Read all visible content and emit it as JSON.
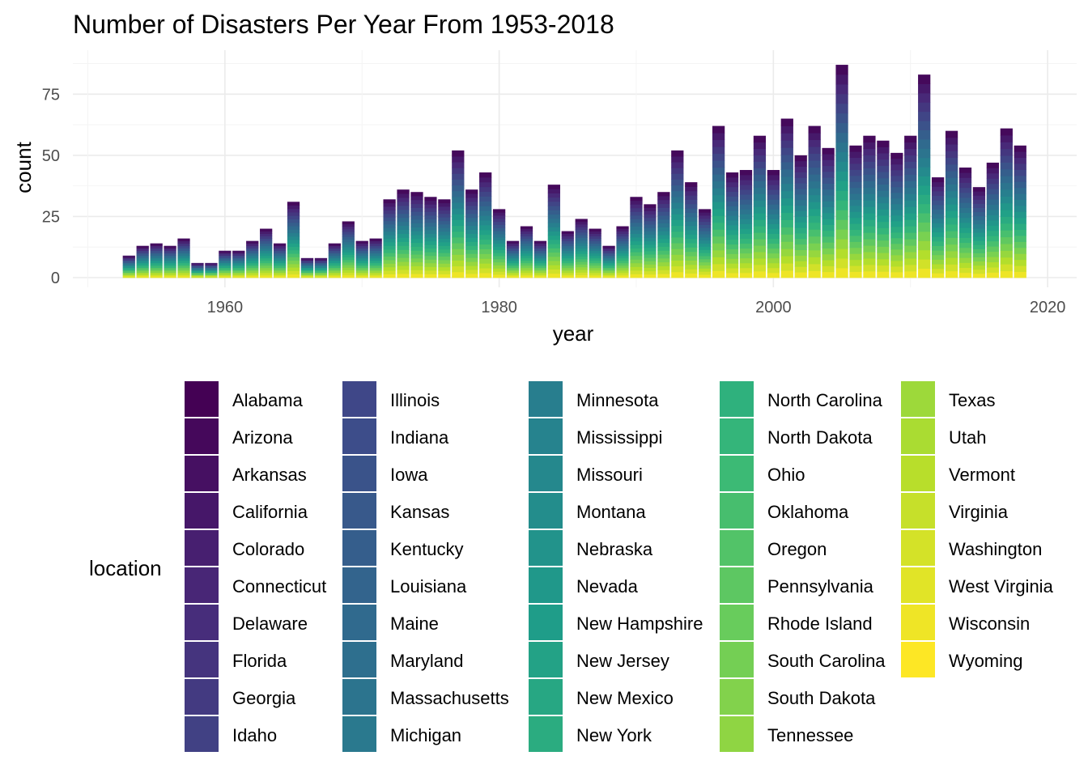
{
  "chart_data": {
    "type": "bar",
    "stacked": true,
    "title": "Number of Disasters Per Year From 1953-2018",
    "xlabel": "year",
    "ylabel": "count",
    "x": [
      1953,
      1954,
      1955,
      1956,
      1957,
      1958,
      1959,
      1960,
      1961,
      1962,
      1963,
      1964,
      1965,
      1966,
      1967,
      1968,
      1969,
      1970,
      1971,
      1972,
      1973,
      1974,
      1975,
      1976,
      1977,
      1978,
      1979,
      1980,
      1981,
      1982,
      1983,
      1984,
      1985,
      1986,
      1987,
      1988,
      1989,
      1990,
      1991,
      1992,
      1993,
      1994,
      1995,
      1996,
      1997,
      1998,
      1999,
      2000,
      2001,
      2002,
      2003,
      2004,
      2005,
      2006,
      2007,
      2008,
      2009,
      2010,
      2011,
      2012,
      2013,
      2014,
      2015,
      2016,
      2017,
      2018
    ],
    "totals": [
      9,
      13,
      14,
      13,
      16,
      6,
      6,
      11,
      11,
      15,
      20,
      14,
      31,
      8,
      8,
      14,
      23,
      15,
      16,
      32,
      36,
      35,
      33,
      32,
      52,
      36,
      43,
      28,
      15,
      21,
      15,
      38,
      19,
      24,
      20,
      13,
      21,
      33,
      30,
      35,
      52,
      39,
      28,
      62,
      43,
      44,
      58,
      44,
      65,
      50,
      62,
      53,
      87,
      54,
      58,
      56,
      51,
      58,
      83,
      41,
      60,
      45,
      37,
      47,
      61,
      54
    ],
    "xlim": [
      1949.5,
      2022
    ],
    "ylim": [
      0,
      90
    ],
    "x_ticks": [
      1960,
      1980,
      2000,
      2020
    ],
    "y_ticks": [
      0,
      25,
      50,
      75
    ],
    "fill_variable": "location",
    "colormap": "viridis",
    "grid": true,
    "legend_position": "bottom",
    "legend_columns": 5,
    "legend_title": "location",
    "categories": [
      "Alabama",
      "Arizona",
      "Arkansas",
      "California",
      "Colorado",
      "Connecticut",
      "Delaware",
      "Florida",
      "Georgia",
      "Idaho",
      "Illinois",
      "Indiana",
      "Iowa",
      "Kansas",
      "Kentucky",
      "Louisiana",
      "Maine",
      "Maryland",
      "Massachusetts",
      "Michigan",
      "Minnesota",
      "Mississippi",
      "Missouri",
      "Montana",
      "Nebraska",
      "Nevada",
      "New Hampshire",
      "New Jersey",
      "New Mexico",
      "New York",
      "North Carolina",
      "North Dakota",
      "Ohio",
      "Oklahoma",
      "Oregon",
      "Pennsylvania",
      "Rhode Island",
      "South Carolina",
      "South Dakota",
      "Tennessee",
      "Texas",
      "Utah",
      "Vermont",
      "Virginia",
      "Washington",
      "West Virginia",
      "Wisconsin",
      "Wyoming"
    ]
  }
}
